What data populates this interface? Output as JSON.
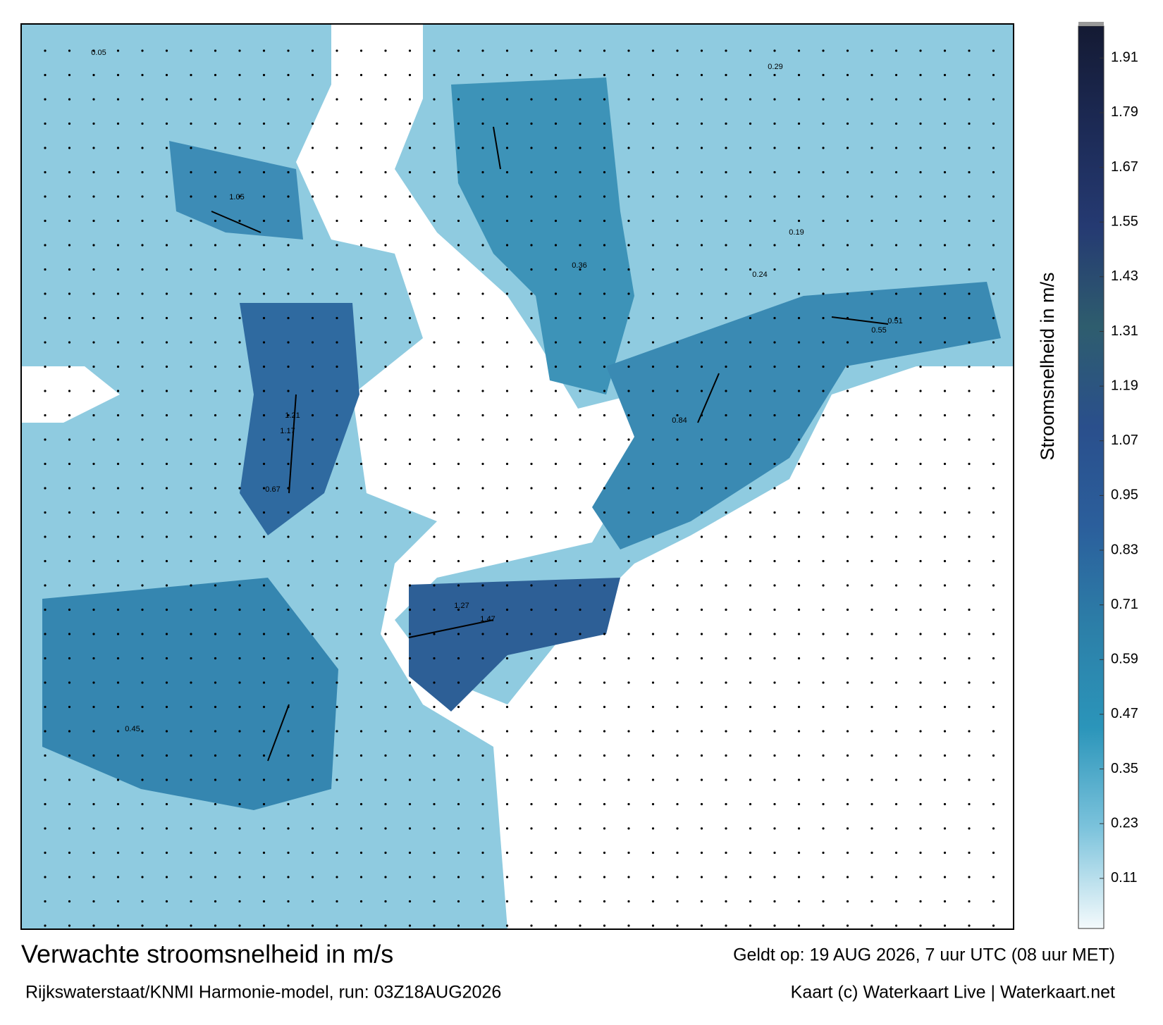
{
  "title": "Verwachte stroomsnelheid in m/s",
  "subtitle": "Rijkswaterstaat/KNMI Harmonie-model, run: 03Z18AUG2026",
  "valid_time": "Geldt op: 19 AUG 2026, 7 uur UTC (08 uur MET)",
  "credit": "Kaart (c) Waterkaart Live | Waterkaart.net",
  "colorbar": {
    "label": "Stroomsnelheid in m/s",
    "clim": [
      0,
      1.98
    ],
    "ticks": [
      0.11,
      0.23,
      0.35,
      0.47,
      0.59,
      0.71,
      0.83,
      0.95,
      1.07,
      1.19,
      1.31,
      1.43,
      1.55,
      1.67,
      1.79,
      1.91
    ],
    "colors": [
      "#f4fafc",
      "#7cc3dc",
      "#2b95ba",
      "#2c7fa8",
      "#2b5f9c",
      "#2a4f8c",
      "#2e5d6e",
      "#253a72",
      "#1c2a55",
      "#141a33"
    ]
  },
  "point_labels": [
    1.05,
    1.21,
    1.17,
    1.47,
    1.27,
    0.84,
    0.55,
    0.51,
    0.24,
    0.36,
    0.67,
    0.45,
    0.19,
    0.29,
    0.05
  ]
}
